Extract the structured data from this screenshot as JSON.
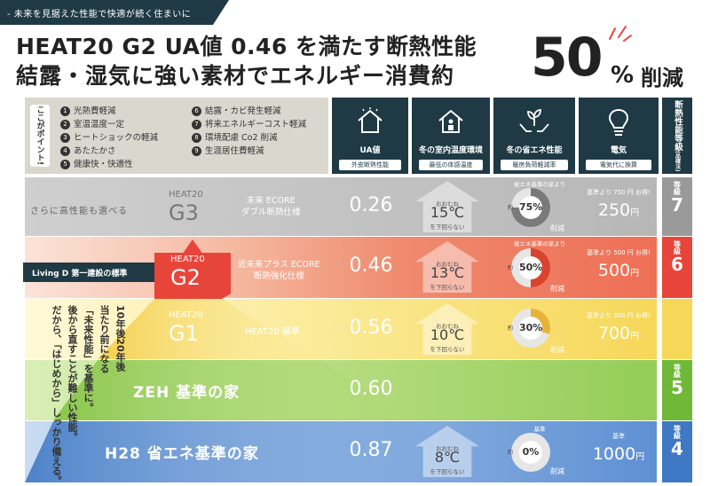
{
  "ribbon": "- 未来を見据えた性能で快適が続く住まいに",
  "title_line1": "HEAT20 G2 UA値 0.46 を満たす断熱性能",
  "title_line2": "結露・湿気に強い素材でエネルギー消費約",
  "big_number": "50",
  "big_pct": "%",
  "big_suffix": "削減",
  "points_tag": "ここがポイント!",
  "points_col1": [
    {
      "n": "1",
      "t": "光熱費軽減"
    },
    {
      "n": "2",
      "t": "室温温度一定"
    },
    {
      "n": "3",
      "t": "ヒートショックの軽減"
    },
    {
      "n": "4",
      "t": "あたたかさ"
    },
    {
      "n": "5",
      "t": "健康快・快適性"
    }
  ],
  "points_col2": [
    {
      "n": "6",
      "t": "結露・カビ発生軽減"
    },
    {
      "n": "7",
      "t": "将来エネルギーコスト軽減"
    },
    {
      "n": "8",
      "t": "環境配慮 Co2 削減"
    },
    {
      "n": "9",
      "t": "生涯居住費軽減"
    }
  ],
  "col_ua": {
    "head": "UA値",
    "sub": "外皮断熱性能"
  },
  "col_temp": {
    "head": "冬の室内温度環境",
    "sub": "最低の体感温度"
  },
  "col_energy": {
    "head": "冬の省エネ性能",
    "sub": "暖房負荷軽減率"
  },
  "col_elec": {
    "head": "電気",
    "sub": "電気代に換算"
  },
  "grade_head": "断熱性能等級",
  "grade_head_small": "(品確法)",
  "g3": {
    "left": "さらに高性能も選べる",
    "heat": "HEAT20",
    "g": "G3",
    "desc1": "未来 ECORE",
    "desc2": "ダブル断熱仕様",
    "ua": "0.26",
    "temp_small": "おおむね",
    "temp": "15℃",
    "temp_foot": "を下回らない",
    "donut_top": "省エネ基準の家より",
    "donut_pre": "約",
    "donut": "75%",
    "donut_sk": "削減",
    "elec_small": "基準より 750 円 お得!",
    "elec": "250",
    "elec_unit": "円",
    "grade_label": "等級",
    "grade": "7"
  },
  "living": "Living D 第一建設の標準",
  "g2": {
    "heat": "HEAT20",
    "g": "G2",
    "desc1": "近未来プラス ECORE",
    "desc2": "断熱強化仕様",
    "ua": "0.46",
    "temp_small": "おおむね",
    "temp": "13℃",
    "temp_foot": "を下回らない",
    "donut_top": "省エネ基準の家より",
    "donut_pre": "約",
    "donut": "50%",
    "donut_sk": "削減",
    "elec_small": "基準より 500 円 お得!",
    "elec": "500",
    "elec_unit": "円",
    "grade_label": "等級",
    "grade": "6"
  },
  "g1": {
    "heat": "HEAT20",
    "g": "G1",
    "desc": "HEAT20 基準",
    "ua": "0.56",
    "temp_small": "おおむね",
    "temp": "10℃",
    "temp_foot": "を下回らない",
    "donut_pre": "約",
    "donut": "30%",
    "donut_sk": "削減",
    "elec_small": "基準より 300 円 お得!",
    "elec": "700",
    "elec_unit": "円"
  },
  "vertical_text": [
    "10年後20年後",
    "当たり前になる",
    "「未来性能」を基準に。",
    "後から直すことが難しい性能。",
    "だから、「はじめから」しっかり備える。"
  ],
  "zeh": {
    "label": "ZEH 基準の家",
    "ua": "0.60",
    "grade_label": "等級",
    "grade": "5"
  },
  "h28": {
    "label": "H28 省エネ基準の家",
    "ua": "0.87",
    "temp_small": "おおむね",
    "temp": "8℃",
    "temp_foot": "を下回らない",
    "donut_top": "基準",
    "donut_pre": "約",
    "donut": "0%",
    "donut_sk": "削減",
    "elec_small": "基準",
    "elec": "1000",
    "elec_unit": "円",
    "grade_label": "等級",
    "grade": "4"
  },
  "colors": {
    "navy": "#1f3a45",
    "red": "#e8453a",
    "gray": "#bdbdbd",
    "yellow": "#f6d758",
    "green": "#94cd58",
    "blue": "#5f90d3"
  },
  "donut_fraction": {
    "g3": 0.75,
    "g2": 0.5,
    "g1": 0.3,
    "h28": 0
  }
}
